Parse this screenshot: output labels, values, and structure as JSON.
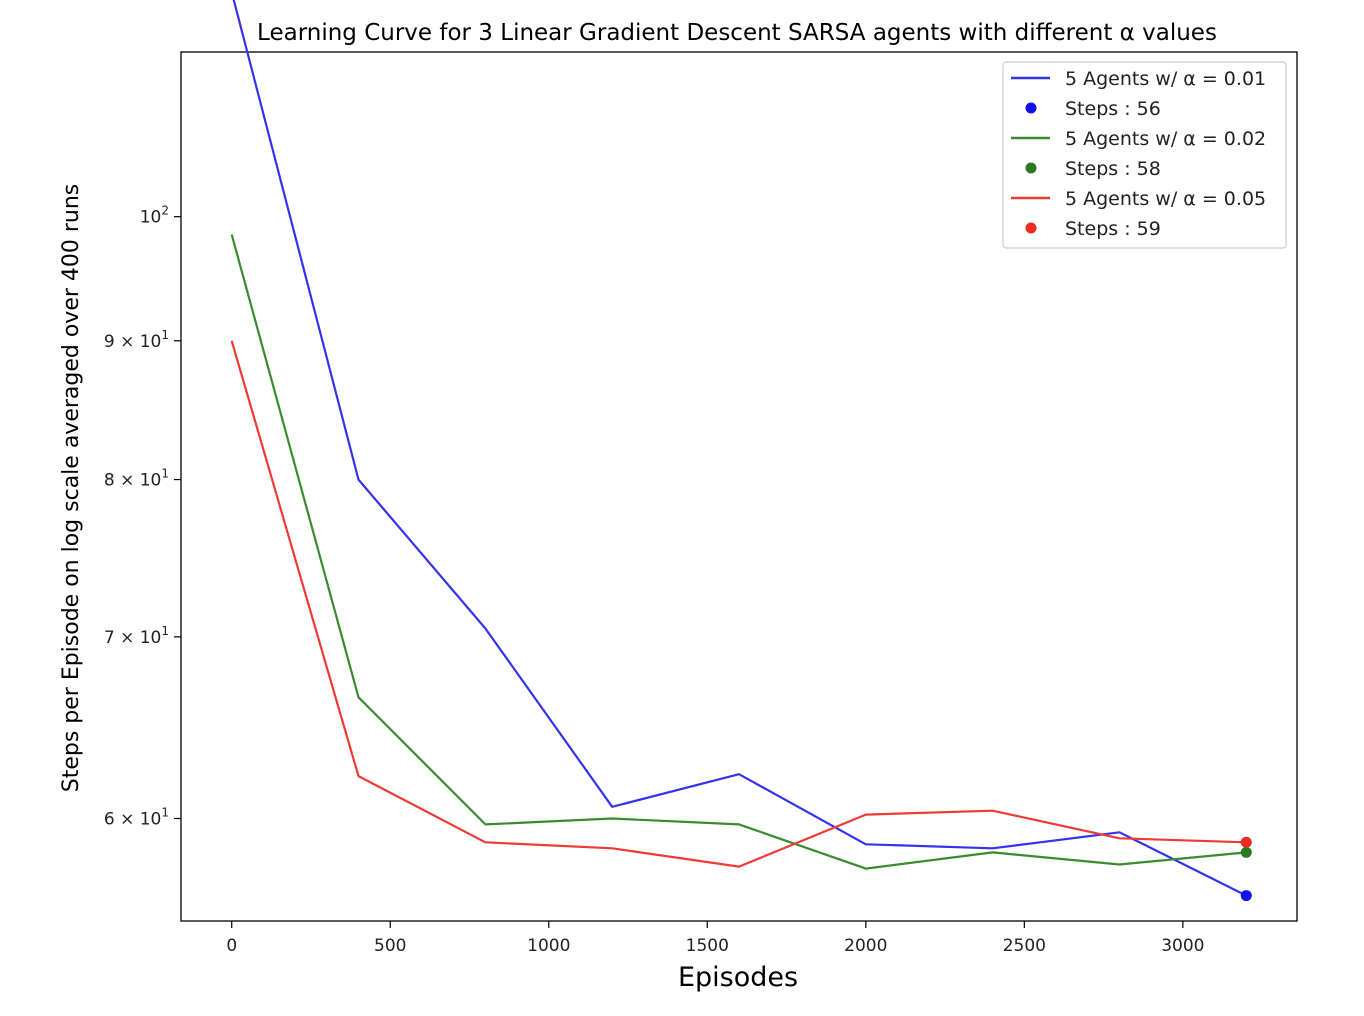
{
  "chart_data": {
    "type": "line",
    "title": "Learning Curve for 3 Linear Gradient Descent SARSA agents with different α values",
    "xlabel": "Episodes",
    "ylabel": "Steps per Episode on log scale averaged over 400 runs",
    "yscale": "log",
    "xlim": [
      -160,
      3360
    ],
    "ylim": [
      55,
      115
    ],
    "xticks": [
      0,
      500,
      1000,
      1500,
      2000,
      2500,
      3000
    ],
    "xtick_labels": [
      "0",
      "500",
      "1000",
      "1500",
      "2000",
      "2500",
      "3000"
    ],
    "yticks": [
      {
        "value": 60,
        "base": "6 × 10",
        "exp": "1"
      },
      {
        "value": 70,
        "base": "7 × 10",
        "exp": "1"
      },
      {
        "value": 80,
        "base": "8 × 10",
        "exp": "1"
      },
      {
        "value": 90,
        "base": "9 × 10",
        "exp": "1"
      },
      {
        "value": 100,
        "base": "10",
        "exp": "2"
      }
    ],
    "legend_position": "top-right",
    "grid": false,
    "series": [
      {
        "name": "5 Agents w/ α = 0.01",
        "color": "#3333ee",
        "x": [
          0,
          400,
          800,
          1200,
          1600,
          2000,
          2400,
          2800,
          3200
        ],
        "y": [
          121,
          80,
          70.5,
          60.6,
          62.3,
          58.7,
          58.5,
          59.3,
          56.2
        ],
        "final_point": {
          "x": 3200,
          "y": 56.2,
          "label": "Steps : 56",
          "color": "#1111ee"
        }
      },
      {
        "name": "5 Agents w/ α = 0.02",
        "color": "#3a8a30",
        "x": [
          0,
          400,
          800,
          1200,
          1600,
          2000,
          2400,
          2800,
          3200
        ],
        "y": [
          98.5,
          66.5,
          59.7,
          60.0,
          59.7,
          57.5,
          58.3,
          57.7,
          58.3
        ],
        "final_point": {
          "x": 3200,
          "y": 58.3,
          "label": "Steps : 58",
          "color": "#2a7a22"
        }
      },
      {
        "name": "5 Agents w/ α = 0.05",
        "color": "#ee3a33",
        "x": [
          0,
          400,
          800,
          1200,
          1600,
          2000,
          2400,
          2800,
          3200
        ],
        "y": [
          90,
          62.2,
          58.8,
          58.5,
          57.6,
          60.2,
          60.4,
          59.0,
          58.8
        ],
        "final_point": {
          "x": 3200,
          "y": 58.8,
          "label": "Steps : 59",
          "color": "#ee2a22"
        }
      }
    ]
  }
}
